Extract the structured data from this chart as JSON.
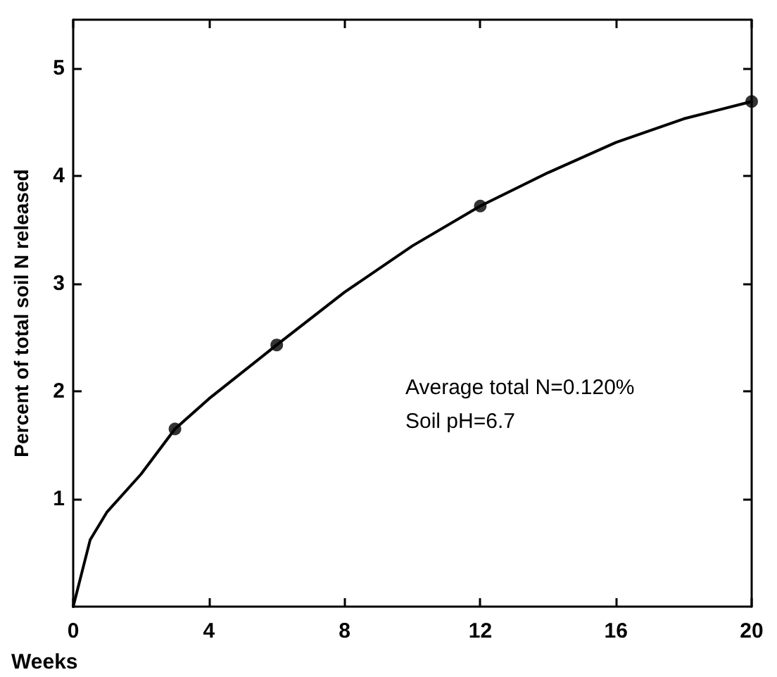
{
  "chart_data": {
    "type": "scatter",
    "xlabel": "Weeks",
    "ylabel": "Percent of total soil N released",
    "x": [
      3,
      6,
      12,
      20
    ],
    "series": [
      {
        "color": "#000000",
        "marker": "circle",
        "values": [
          1.65,
          2.43,
          3.72,
          4.69
        ]
      },
      {
        "type": "line",
        "color": "#000000",
        "marker": "none",
        "x": [
          0,
          0.5,
          1,
          2,
          3,
          4,
          6,
          8,
          10,
          12,
          14,
          16,
          18,
          20
        ],
        "values": [
          0,
          0.62,
          0.88,
          1.23,
          1.65,
          1.93,
          2.43,
          2.92,
          3.35,
          3.72,
          4.03,
          4.31,
          4.53,
          4.69
        ]
      }
    ],
    "annotations": [
      "Average total N=0.120%",
      "Soil pH=6.7"
    ],
    "xlim": [
      0,
      20
    ],
    "xticks": [
      0,
      4,
      8,
      12,
      16,
      20
    ],
    "ylim": [
      0,
      5.45
    ],
    "yticks": [
      1,
      2,
      3,
      4,
      5
    ],
    "grid": false
  }
}
